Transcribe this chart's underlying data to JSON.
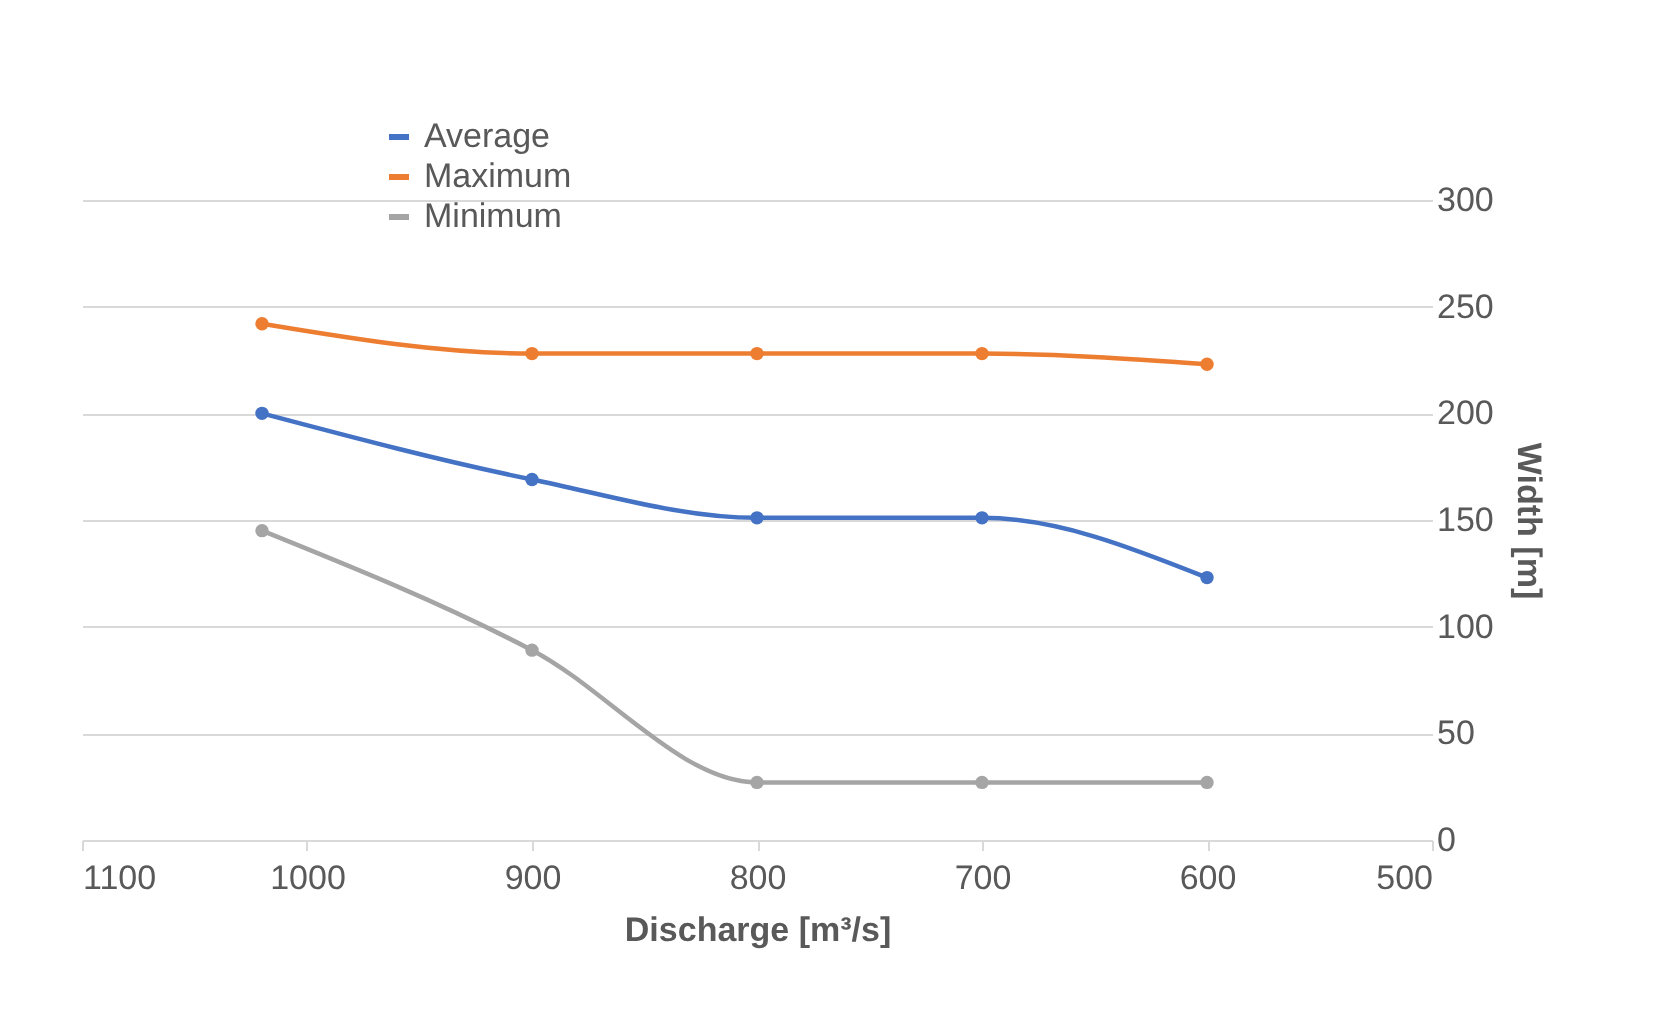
{
  "chart_data": {
    "type": "line",
    "xlabel": "Discharge [m³/s]",
    "ylabel": "Width [m]",
    "x": [
      1020,
      900,
      800,
      700,
      600
    ],
    "series": [
      {
        "name": "Average",
        "color": "#4472c4",
        "values": [
          200,
          169,
          151,
          151,
          123
        ]
      },
      {
        "name": "Maximum",
        "color": "#ed7d31",
        "values": [
          242,
          228,
          228,
          228,
          223
        ]
      },
      {
        "name": "Minimum",
        "color": "#a5a5a5",
        "values": [
          145,
          89,
          27,
          27,
          27
        ]
      }
    ],
    "xlim": [
      1100,
      500
    ],
    "xticks": [
      1100,
      1000,
      900,
      800,
      700,
      600,
      500
    ],
    "ylim": [
      0,
      300
    ],
    "yticks": [
      0,
      50,
      100,
      150,
      200,
      250,
      300
    ],
    "grid": "y",
    "legend": "top",
    "marker": "circle",
    "line_style": "solid"
  }
}
